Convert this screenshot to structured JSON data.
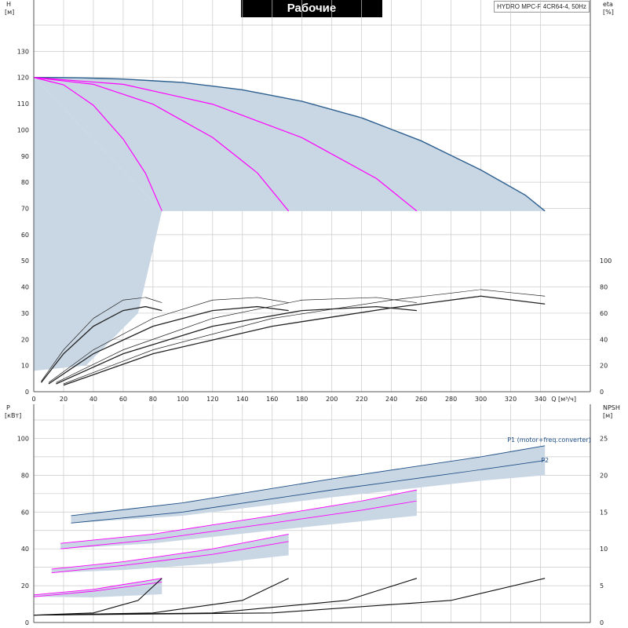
{
  "title": "Рабочие характеристики",
  "model": "HYDRO MPC-F 4CR64-4, 50Hz",
  "colors": {
    "envelope_fill": "#c9d7e4",
    "grid": "#c8c8c8",
    "pump_curve": "#2d5f8f",
    "speed_curves": "#ff00ff",
    "power_curves": "#1f4f86",
    "efficiency": "#222222"
  },
  "top_chart": {
    "left_axis_label": [
      "H",
      "[м]"
    ],
    "right_axis_label": [
      "eta",
      "[%]"
    ],
    "x_axis_label": "Q [м³/ч]",
    "h_ticks": [
      "0",
      "10",
      "20",
      "30",
      "40",
      "50",
      "60",
      "70",
      "80",
      "90",
      "100",
      "110",
      "120",
      "130"
    ],
    "eta_ticks": [
      "0",
      "20",
      "40",
      "60",
      "80",
      "100"
    ],
    "q_ticks": [
      "0",
      "20",
      "40",
      "60",
      "80",
      "100",
      "120",
      "140",
      "160",
      "180",
      "200",
      "220",
      "240",
      "260",
      "280",
      "300",
      "320",
      "340"
    ]
  },
  "bottom_chart": {
    "left_axis_label": [
      "P",
      "[кВт]"
    ],
    "right_axis_label": [
      "NPSH",
      "[м]"
    ],
    "p_ticks": [
      "0",
      "20",
      "40",
      "60",
      "80",
      "100"
    ],
    "npsh_ticks": [
      "0",
      "5",
      "10",
      "15",
      "20",
      "25"
    ],
    "series_labels": [
      "P1 (motor+freq.converter)",
      "P2"
    ]
  },
  "chart_data": [
    {
      "type": "line",
      "title": "Рабочие характеристики",
      "xlabel": "Q [м³/ч]",
      "ylabel": "H [м]",
      "y2label": "eta [%]",
      "xlim": [
        0,
        345
      ],
      "ylim": [
        0,
        140
      ],
      "y2lim": [
        0,
        140
      ],
      "grid": true,
      "series": [
        {
          "role": "max-curve",
          "x": [
            0,
            30,
            60,
            100,
            140,
            180,
            220,
            260,
            300,
            330,
            343
          ],
          "y": [
            120,
            119.9,
            119.4,
            118.1,
            115.3,
            110.9,
            104.6,
            95.8,
            84.7,
            75.0,
            69
          ]
        },
        {
          "role": "speed-curve",
          "x": [
            0,
            20,
            40,
            60,
            75,
            86
          ],
          "y": [
            120,
            117.2,
            109.4,
            96.5,
            83.4,
            69
          ]
        },
        {
          "role": "speed-curve",
          "x": [
            0,
            40,
            80,
            120,
            150,
            171
          ],
          "y": [
            120,
            117.4,
            109.8,
            97.1,
            83.6,
            69
          ]
        },
        {
          "role": "speed-curve",
          "x": [
            0,
            60,
            120,
            180,
            230,
            257
          ],
          "y": [
            120,
            117.4,
            109.8,
            97.0,
            81.4,
            69
          ]
        },
        {
          "role": "efficiency",
          "x": [
            5,
            20,
            40,
            60,
            75,
            86
          ],
          "y": [
            8,
            32,
            56,
            70,
            72,
            68
          ]
        },
        {
          "role": "efficiency",
          "x": [
            5,
            20,
            40,
            60,
            75,
            86
          ],
          "y": [
            7,
            29,
            50,
            62,
            65,
            62
          ]
        },
        {
          "role": "efficiency",
          "x": [
            10,
            40,
            80,
            120,
            150,
            171
          ],
          "y": [
            7,
            32,
            56,
            70,
            72,
            68
          ]
        },
        {
          "role": "efficiency",
          "x": [
            10,
            40,
            80,
            120,
            150,
            171
          ],
          "y": [
            6,
            29,
            50,
            62,
            65,
            62
          ]
        },
        {
          "role": "efficiency",
          "x": [
            15,
            60,
            120,
            180,
            230,
            257
          ],
          "y": [
            7,
            32,
            56,
            70,
            72,
            68
          ]
        },
        {
          "role": "efficiency",
          "x": [
            15,
            60,
            120,
            180,
            230,
            257
          ],
          "y": [
            6,
            29,
            50,
            62,
            65,
            62
          ]
        },
        {
          "role": "efficiency",
          "x": [
            20,
            80,
            160,
            240,
            300,
            343
          ],
          "y": [
            6,
            32,
            56,
            70,
            78,
            73
          ]
        },
        {
          "role": "efficiency",
          "x": [
            20,
            80,
            160,
            240,
            300,
            343
          ],
          "y": [
            5,
            29,
            50,
            64,
            73,
            67
          ]
        }
      ]
    },
    {
      "type": "line",
      "xlabel": "Q [м³/ч]",
      "ylabel": "P [кВт]",
      "y2label": "NPSH [м]",
      "xlim": [
        0,
        345
      ],
      "ylim": [
        0,
        110
      ],
      "y2lim": [
        0,
        27.5
      ],
      "grid": true,
      "series": [
        {
          "name": "P1 (motor+freq.converter)",
          "x": [
            25,
            100,
            200,
            300,
            343
          ],
          "y": [
            58,
            65,
            78,
            90,
            96
          ]
        },
        {
          "name": "P2",
          "x": [
            25,
            100,
            200,
            300,
            343
          ],
          "y": [
            54,
            60,
            72,
            83,
            88
          ]
        },
        {
          "role": "P1-stage3",
          "x": [
            18,
            80,
            160,
            220,
            257
          ],
          "y": [
            43,
            48,
            58,
            66,
            72
          ]
        },
        {
          "role": "P2-stage3",
          "x": [
            18,
            80,
            160,
            220,
            257
          ],
          "y": [
            40,
            45,
            54,
            61,
            66
          ]
        },
        {
          "role": "P1-stage2",
          "x": [
            12,
            60,
            120,
            171
          ],
          "y": [
            29,
            33,
            40,
            48
          ]
        },
        {
          "role": "P2-stage2",
          "x": [
            12,
            60,
            120,
            171
          ],
          "y": [
            27,
            31,
            37,
            44
          ]
        },
        {
          "role": "P1-stage1",
          "x": [
            0,
            40,
            86
          ],
          "y": [
            15,
            18,
            24
          ]
        },
        {
          "role": "P2-stage1",
          "x": [
            0,
            40,
            86
          ],
          "y": [
            14,
            17,
            22
          ]
        },
        {
          "role": "NPSH",
          "x": [
            0,
            40,
            70,
            86
          ],
          "y": [
            1,
            1.3,
            3,
            6
          ]
        },
        {
          "role": "NPSH",
          "x": [
            0,
            80,
            140,
            171
          ],
          "y": [
            1,
            1.3,
            3,
            6
          ]
        },
        {
          "role": "NPSH",
          "x": [
            0,
            120,
            210,
            257
          ],
          "y": [
            1,
            1.3,
            3,
            6
          ]
        },
        {
          "role": "NPSH",
          "x": [
            0,
            160,
            280,
            343
          ],
          "y": [
            1,
            1.3,
            3,
            6
          ]
        }
      ]
    }
  ]
}
